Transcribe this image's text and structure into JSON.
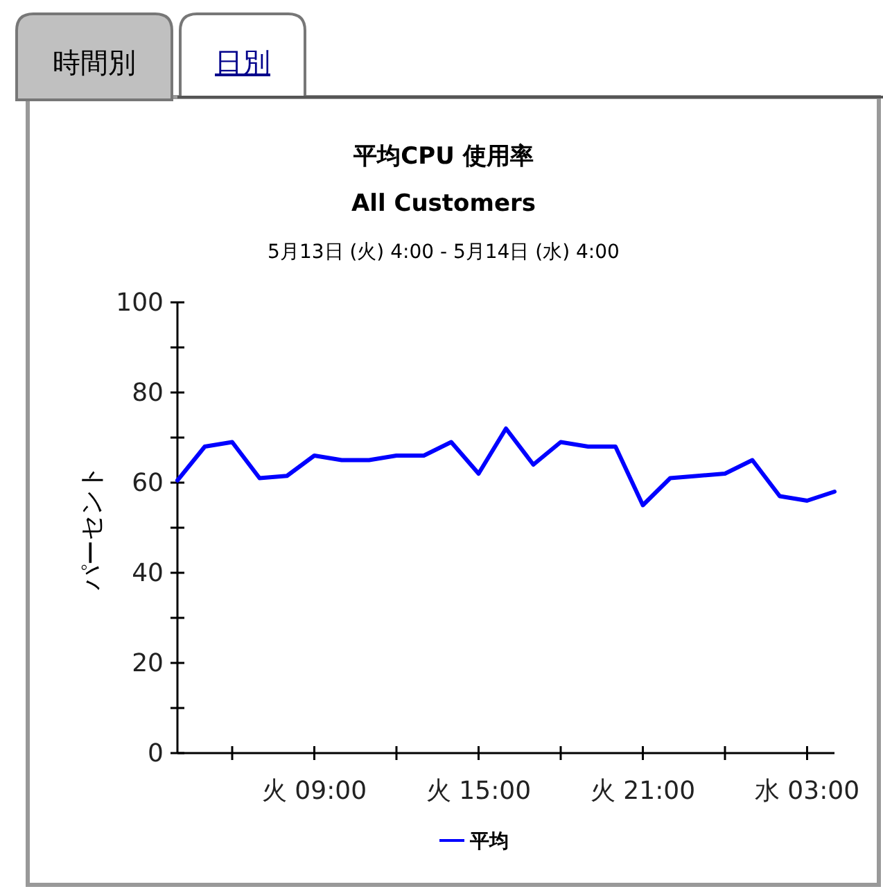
{
  "chart_data": {
    "type": "line",
    "title": "平均CPU 使用率",
    "subtitle": "All Customers",
    "ylabel": "パーセント",
    "annotations": [
      "5月13日 (火) 4:00 - 5月14日 (水) 4:00",
      "時間別",
      "日別"
    ],
    "categories": [
      null,
      null,
      null,
      null,
      null,
      "火 09:00",
      null,
      null,
      null,
      null,
      null,
      "火 15:00",
      null,
      null,
      null,
      null,
      null,
      "火 21:00",
      null,
      null,
      null,
      null,
      null,
      "水 03:00",
      null
    ],
    "series": [
      {
        "name": "平均",
        "color": "#0000ff",
        "values": [
          60.5,
          68,
          69,
          61,
          61.5,
          66,
          65,
          65,
          66,
          66,
          69,
          62,
          72,
          64,
          69,
          68,
          68,
          55,
          61,
          61.5,
          62,
          65,
          57,
          56,
          58
        ]
      }
    ],
    "ylim": [
      0,
      100
    ],
    "yticks": [
      0,
      {
        "value": 10,
        "label": null
      },
      20,
      {
        "value": 30,
        "label": null
      },
      40,
      {
        "value": 50,
        "label": null
      },
      60,
      {
        "value": 70,
        "label": null
      },
      80,
      {
        "value": 90,
        "label": null
      },
      100
    ],
    "legend": "bottom"
  }
}
